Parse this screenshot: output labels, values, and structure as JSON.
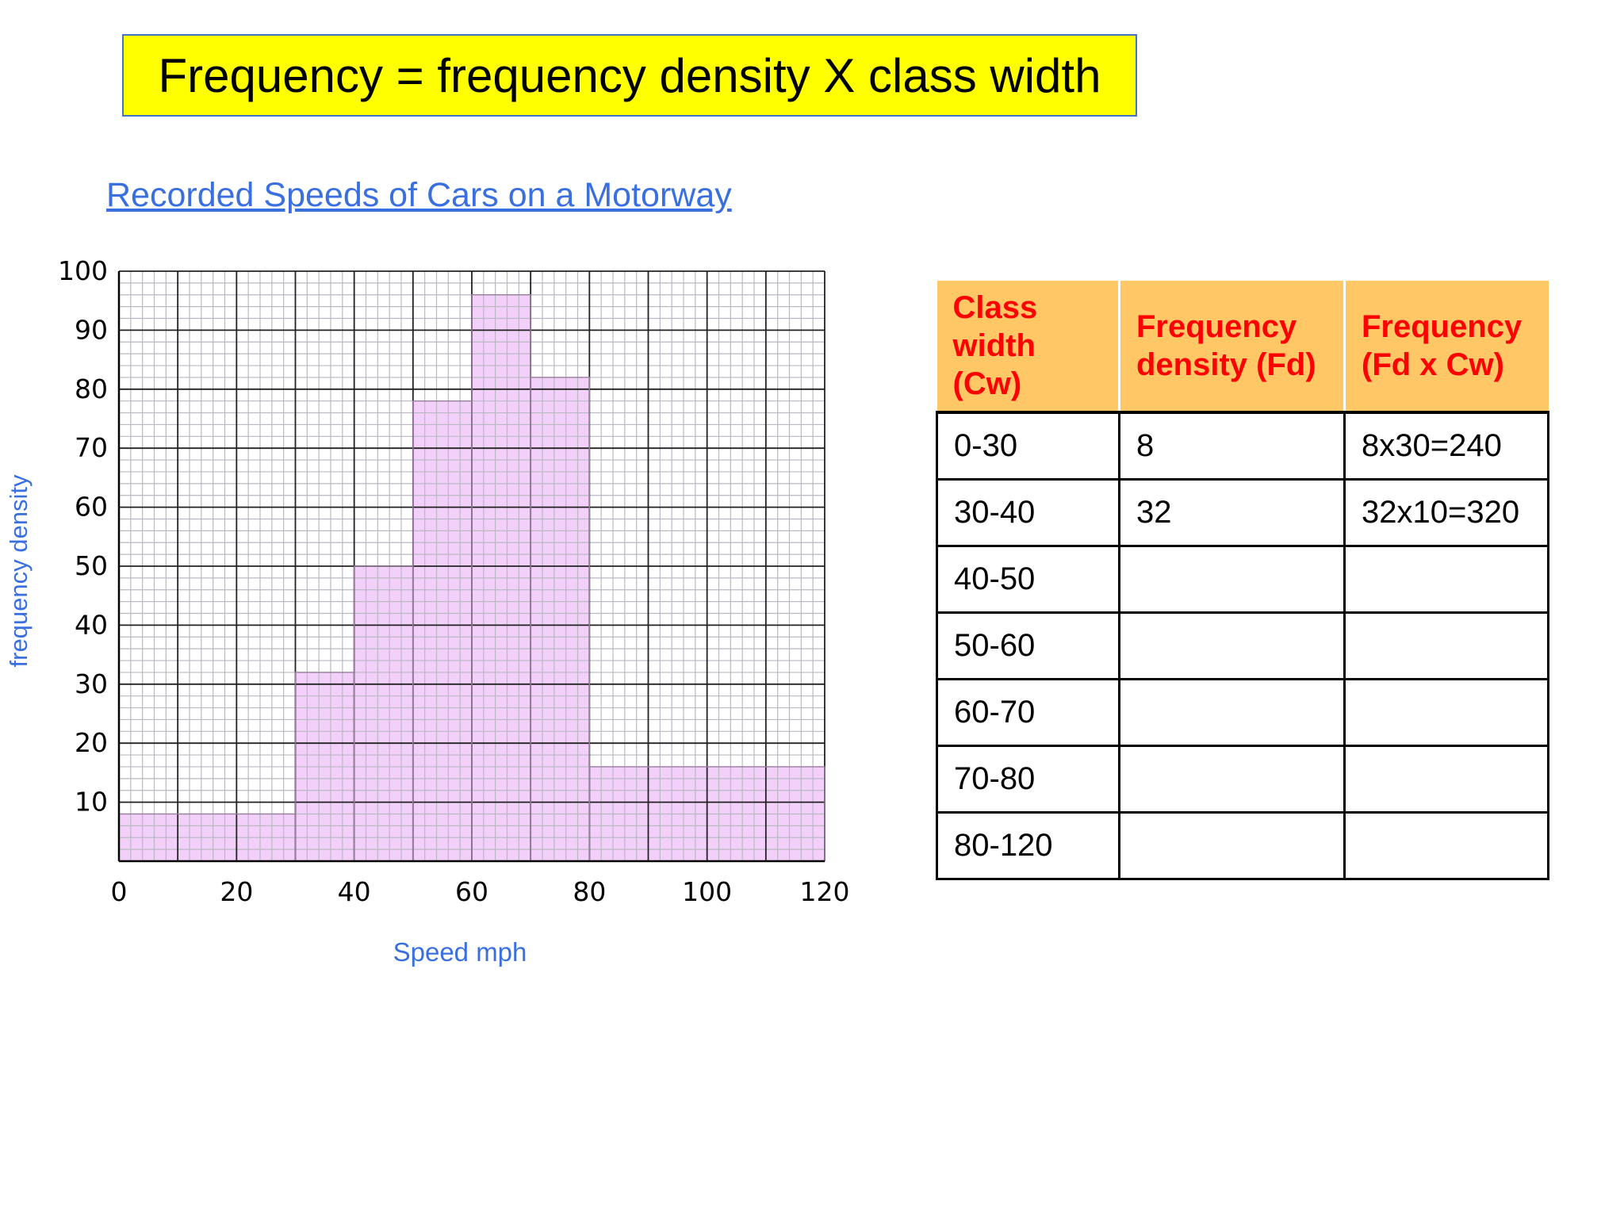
{
  "formula": "Frequency = frequency density X class width",
  "chart_data": {
    "type": "bar",
    "title": "Recorded Speeds of Cars on a Motorway",
    "xlabel": "Speed mph",
    "ylabel": "frequency density",
    "xlim": [
      0,
      120
    ],
    "ylim": [
      0,
      100
    ],
    "xticks": [
      "0",
      "20",
      "40",
      "60",
      "80",
      "100",
      "120"
    ],
    "yticks": [
      "10",
      "20",
      "30",
      "40",
      "50",
      "60",
      "70",
      "80",
      "90",
      "100"
    ],
    "grid": true,
    "bar_color": "#f0c8f8",
    "bars": [
      {
        "from": 0,
        "to": 30,
        "value": 8
      },
      {
        "from": 30,
        "to": 40,
        "value": 32
      },
      {
        "from": 40,
        "to": 50,
        "value": 50
      },
      {
        "from": 50,
        "to": 60,
        "value": 78
      },
      {
        "from": 60,
        "to": 70,
        "value": 96
      },
      {
        "from": 70,
        "to": 80,
        "value": 82
      },
      {
        "from": 80,
        "to": 120,
        "value": 16
      }
    ]
  },
  "table": {
    "headers": [
      "Class width (Cw)",
      "Frequency density (Fd)",
      "Frequency (Fd x Cw)"
    ],
    "rows": [
      [
        "0-30",
        "8",
        "8x30=240"
      ],
      [
        "30-40",
        "32",
        "32x10=320"
      ],
      [
        "40-50",
        "",
        ""
      ],
      [
        "50-60",
        "",
        ""
      ],
      [
        "60-70",
        "",
        ""
      ],
      [
        "70-80",
        "",
        ""
      ],
      [
        "80-120",
        "",
        ""
      ]
    ]
  }
}
